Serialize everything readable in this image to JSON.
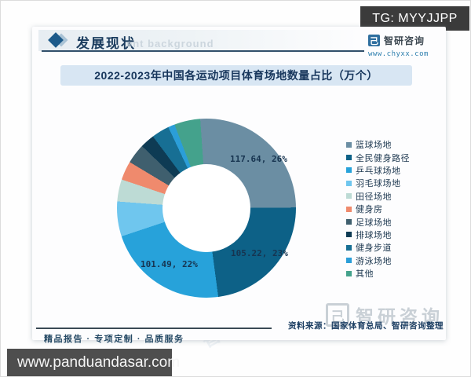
{
  "tg_badge": {
    "text": "TG: MYYJJPP"
  },
  "header": {
    "section_title": "发展现状",
    "watermark_text": "ent background",
    "brand_icon_glyph": "己",
    "brand_name": "智研咨询",
    "brand_url": "www.chyxx.com"
  },
  "chart": {
    "title": "2022-2023年中国各运动项目体育场地数量占比（万个）"
  },
  "chart_data": {
    "type": "pie",
    "subtype": "donut",
    "title": "2022-2023年中国各运动项目体育场地数量占比（万个）",
    "unit": "万个",
    "legend_position": "right",
    "start_angle_deg": -4,
    "slices": [
      {
        "label": "篮球场地",
        "value": 117.64,
        "percent": 26,
        "color": "#6b8ea3",
        "data_label": "117.64, 26%"
      },
      {
        "label": "全民健身路径",
        "value": 105.22,
        "percent": 23,
        "color": "#0d6187",
        "data_label": "105.22, 23%"
      },
      {
        "label": "乒乓球场地",
        "value": 101.49,
        "percent": 22,
        "color": "#27a2da",
        "data_label": "101.49, 22%"
      },
      {
        "label": "羽毛球场地",
        "percent": 6.3,
        "color": "#6fc6ee"
      },
      {
        "label": "田径场地",
        "percent": 4.0,
        "color": "#bddbd5"
      },
      {
        "label": "健身房",
        "percent": 3.4,
        "color": "#ef8a6d"
      },
      {
        "label": "足球场地",
        "percent": 3.6,
        "color": "#3f5f6e"
      },
      {
        "label": "排球场地",
        "percent": 2.6,
        "color": "#0e3b54"
      },
      {
        "label": "健身步道",
        "percent": 3.2,
        "color": "#176f94"
      },
      {
        "label": "游泳场地",
        "percent": 1.2,
        "color": "#2b9ed8"
      },
      {
        "label": "其他",
        "percent": 4.7,
        "color": "#44a28c"
      }
    ]
  },
  "footer": {
    "tagline": "精品报告 · 专项定制 · 品质服务",
    "source": "资料来源：国家体育总局、智研咨询整理",
    "brand_icon_glyph": "己",
    "brand_name": "智研咨询"
  },
  "watermark_bar": {
    "text": "www.panduandasar.com"
  },
  "background_watermark": {
    "text": "智研咨询"
  }
}
